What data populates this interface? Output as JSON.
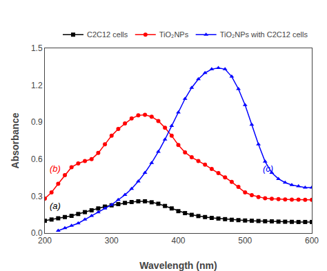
{
  "chart_data": {
    "type": "line",
    "xlabel": "Wavelength (nm)",
    "ylabel": "Absorbance",
    "xlim": [
      200,
      600
    ],
    "ylim": [
      0.0,
      1.5
    ],
    "xticks": [
      200,
      300,
      400,
      500,
      600
    ],
    "yticks": [
      {
        "value": 0.0,
        "label": "0.0"
      },
      0.3,
      0.6,
      0.9,
      1.2,
      1.5
    ],
    "grid": false,
    "legend": "upper right",
    "series": [
      {
        "name": "C2C12 cells",
        "color": "#000000",
        "marker": "square",
        "x": [
          200,
          210,
          220,
          230,
          240,
          250,
          260,
          270,
          280,
          290,
          300,
          310,
          320,
          330,
          340,
          350,
          360,
          370,
          380,
          390,
          400,
          410,
          420,
          430,
          440,
          450,
          460,
          470,
          480,
          490,
          500,
          510,
          520,
          530,
          540,
          550,
          560,
          570,
          580,
          590,
          600
        ],
        "values": [
          0.1,
          0.11,
          0.12,
          0.13,
          0.14,
          0.155,
          0.17,
          0.185,
          0.2,
          0.215,
          0.225,
          0.235,
          0.245,
          0.252,
          0.258,
          0.258,
          0.25,
          0.238,
          0.22,
          0.2,
          0.178,
          0.162,
          0.148,
          0.138,
          0.13,
          0.123,
          0.118,
          0.113,
          0.108,
          0.105,
          0.102,
          0.1,
          0.098,
          0.096,
          0.095,
          0.093,
          0.092,
          0.091,
          0.09,
          0.09,
          0.09
        ]
      },
      {
        "name": "TiO₂NPs",
        "color": "#ff0000",
        "marker": "circle",
        "x": [
          200,
          210,
          220,
          230,
          240,
          250,
          260,
          270,
          280,
          290,
          300,
          310,
          320,
          330,
          340,
          350,
          360,
          370,
          380,
          390,
          400,
          410,
          420,
          430,
          440,
          450,
          460,
          470,
          480,
          490,
          500,
          510,
          520,
          530,
          540,
          550,
          560,
          570,
          580,
          590,
          600
        ],
        "values": [
          0.28,
          0.33,
          0.4,
          0.47,
          0.535,
          0.565,
          0.585,
          0.6,
          0.65,
          0.72,
          0.79,
          0.845,
          0.89,
          0.93,
          0.955,
          0.96,
          0.945,
          0.91,
          0.855,
          0.79,
          0.715,
          0.655,
          0.615,
          0.585,
          0.555,
          0.52,
          0.487,
          0.452,
          0.415,
          0.375,
          0.33,
          0.308,
          0.293,
          0.282,
          0.278,
          0.275,
          0.273,
          0.272,
          0.271,
          0.27,
          0.27
        ]
      },
      {
        "name": "TiO₂NPs with C2C12 cells",
        "color": "#0000ff",
        "marker": "triangle-up",
        "x": [
          220,
          230,
          240,
          250,
          260,
          270,
          280,
          290,
          300,
          310,
          320,
          330,
          340,
          350,
          360,
          370,
          380,
          390,
          400,
          410,
          420,
          430,
          440,
          450,
          460,
          470,
          480,
          490,
          500,
          510,
          520,
          530,
          540,
          550,
          560,
          570,
          580,
          590,
          600
        ],
        "values": [
          0.02,
          0.04,
          0.06,
          0.08,
          0.11,
          0.14,
          0.17,
          0.2,
          0.23,
          0.27,
          0.31,
          0.36,
          0.42,
          0.49,
          0.57,
          0.66,
          0.76,
          0.87,
          0.98,
          1.09,
          1.18,
          1.25,
          1.3,
          1.33,
          1.34,
          1.33,
          1.27,
          1.17,
          1.04,
          0.88,
          0.72,
          0.58,
          0.49,
          0.44,
          0.41,
          0.39,
          0.38,
          0.37,
          0.37
        ]
      }
    ],
    "annotations": [
      {
        "text": "(b)",
        "x": 205,
        "y": 0.47,
        "color": "#ff0000"
      },
      {
        "text": "(a)",
        "x": 205,
        "y": 0.17,
        "color": "#000000"
      },
      {
        "text": "(c)",
        "x": 525,
        "y": 0.47,
        "color": "#0000ff"
      }
    ]
  }
}
